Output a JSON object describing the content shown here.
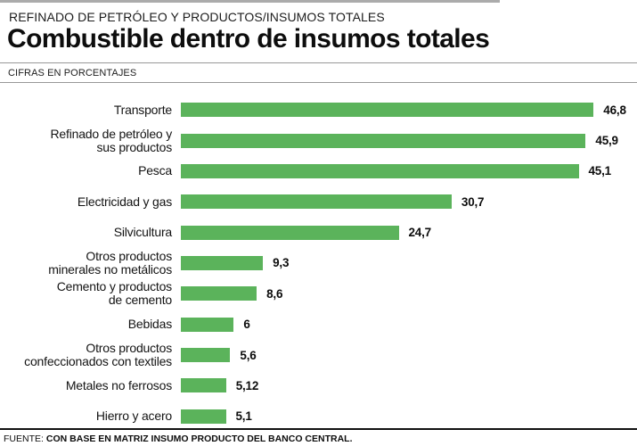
{
  "header": {
    "kicker": "REFINADO DE PETRÓLEO Y PRODUCTOS/INSUMOS TOTALES",
    "title": "Combustible dentro de insumos totales",
    "subtitle": "CIFRAS EN PORCENTAJES"
  },
  "footer": {
    "source_label": "FUENTE:",
    "source_text": "CON BASE EN MATRIZ INSUMO PRODUCTO DEL BANCO CENTRAL."
  },
  "colors": {
    "bar": "#5bb35b",
    "top_rule": "#ababab",
    "header_rule": "#999999",
    "footer_rule": "#111111"
  },
  "chart_data": {
    "type": "bar",
    "orientation": "horizontal",
    "title": "Combustible dentro de insumos totales",
    "subtitle": "CIFRAS EN PORCENTAJES",
    "units": "percent",
    "xlim": [
      0,
      48
    ],
    "grid": false,
    "legend": false,
    "value_labels_shown": true,
    "categories": [
      "Transporte",
      "Refinado de petróleo y\nsus productos",
      "Pesca",
      "Electricidad y gas",
      "Silvicultura",
      "Otros productos\nminerales no metálicos",
      "Cemento y productos\nde cemento",
      "Bebidas",
      "Otros productos\nconfeccionados con textiles",
      "Metales no ferrosos",
      "Hierro y acero"
    ],
    "values": [
      46.8,
      45.9,
      45.1,
      30.7,
      24.7,
      9.3,
      8.6,
      6,
      5.6,
      5.12,
      5.1
    ],
    "value_labels": [
      "46,8",
      "45,9",
      "45,1",
      "30,7",
      "24,7",
      "9,3",
      "8,6",
      "6",
      "5,6",
      "5,12",
      "5,1"
    ]
  }
}
